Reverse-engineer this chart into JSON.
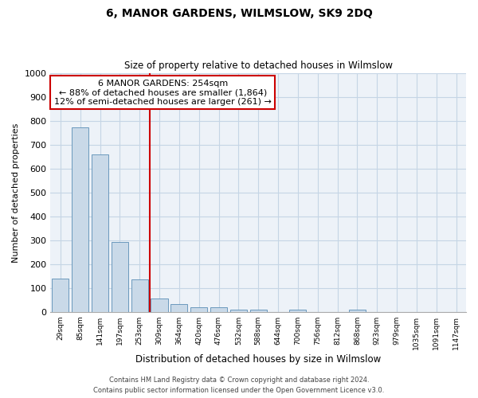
{
  "title": "6, MANOR GARDENS, WILMSLOW, SK9 2DQ",
  "subtitle": "Size of property relative to detached houses in Wilmslow",
  "xlabel": "Distribution of detached houses by size in Wilmslow",
  "ylabel": "Number of detached properties",
  "bar_values": [
    140,
    775,
    660,
    293,
    135,
    55,
    33,
    20,
    20,
    10,
    10,
    0,
    10,
    0,
    0,
    10,
    0,
    0,
    0,
    0,
    0
  ],
  "bar_labels": [
    "29sqm",
    "85sqm",
    "141sqm",
    "197sqm",
    "253sqm",
    "309sqm",
    "364sqm",
    "420sqm",
    "476sqm",
    "532sqm",
    "588sqm",
    "644sqm",
    "700sqm",
    "756sqm",
    "812sqm",
    "868sqm",
    "923sqm",
    "979sqm",
    "1035sqm",
    "1091sqm",
    "1147sqm"
  ],
  "bar_color": "#c9d9e8",
  "bar_edge_color": "#5a8db5",
  "ylim": [
    0,
    1000
  ],
  "yticks": [
    0,
    100,
    200,
    300,
    400,
    500,
    600,
    700,
    800,
    900,
    1000
  ],
  "annotation_title": "6 MANOR GARDENS: 254sqm",
  "annotation_line1": "← 88% of detached houses are smaller (1,864)",
  "annotation_line2": "12% of semi-detached houses are larger (261) →",
  "annotation_box_color": "#ffffff",
  "annotation_border_color": "#cc0000",
  "vline_color": "#cc0000",
  "grid_color": "#c5d5e5",
  "bg_color": "#edf2f8",
  "footer1": "Contains HM Land Registry data © Crown copyright and database right 2024.",
  "footer2": "Contains public sector information licensed under the Open Government Licence v3.0."
}
